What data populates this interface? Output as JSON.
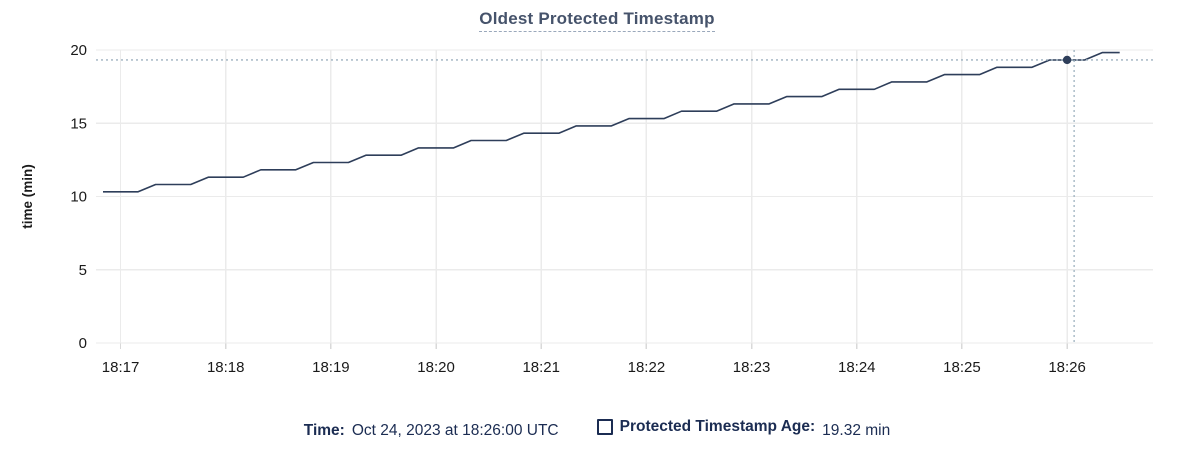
{
  "title": "Oldest Protected Timestamp",
  "chart_data": {
    "type": "line",
    "title": "Oldest Protected Timestamp",
    "xlabel": "",
    "ylabel": "time (min)",
    "ylim": [
      0,
      20
    ],
    "yticks": [
      0,
      5,
      10,
      15,
      20
    ],
    "grid": true,
    "legend_position": "bottom",
    "x_axis": {
      "labels": [
        "18:17",
        "18:18",
        "18:19",
        "18:20",
        "18:21",
        "18:22",
        "18:23",
        "18:24",
        "18:25",
        "18:26"
      ],
      "label_times_s": [
        10,
        70,
        130,
        190,
        250,
        310,
        370,
        430,
        490,
        550
      ],
      "range_s": [
        -4,
        599
      ]
    },
    "series": [
      {
        "name": "Protected Timestamp Age",
        "points": [
          [
            0,
            10.32
          ],
          [
            20,
            10.32
          ],
          [
            30,
            10.82
          ],
          [
            50,
            10.82
          ],
          [
            60,
            11.32
          ],
          [
            80,
            11.32
          ],
          [
            90,
            11.82
          ],
          [
            110,
            11.82
          ],
          [
            120,
            12.32
          ],
          [
            140,
            12.32
          ],
          [
            150,
            12.82
          ],
          [
            170,
            12.82
          ],
          [
            180,
            13.32
          ],
          [
            200,
            13.32
          ],
          [
            210,
            13.82
          ],
          [
            230,
            13.82
          ],
          [
            240,
            14.32
          ],
          [
            260,
            14.32
          ],
          [
            270,
            14.82
          ],
          [
            290,
            14.82
          ],
          [
            300,
            15.32
          ],
          [
            320,
            15.32
          ],
          [
            330,
            15.82
          ],
          [
            350,
            15.82
          ],
          [
            360,
            16.32
          ],
          [
            380,
            16.32
          ],
          [
            390,
            16.82
          ],
          [
            410,
            16.82
          ],
          [
            420,
            17.32
          ],
          [
            440,
            17.32
          ],
          [
            450,
            17.82
          ],
          [
            470,
            17.82
          ],
          [
            480,
            18.32
          ],
          [
            500,
            18.32
          ],
          [
            510,
            18.82
          ],
          [
            530,
            18.82
          ],
          [
            540,
            19.32
          ],
          [
            560,
            19.32
          ],
          [
            570,
            19.82
          ],
          [
            580,
            19.82
          ]
        ]
      }
    ],
    "crosshair": {
      "hover_time_s": 554,
      "point_time_s": 550,
      "value": 19.32
    },
    "colors": {
      "line": "#2e3e5a",
      "marker": "#2e3e5a",
      "crosshair": "#9db1bf",
      "grid": "#ebebeb",
      "tick_stub": "#d9d9d9",
      "axis_text": "#1a1a1a",
      "title": "#46536b",
      "footer_text": "#1b2c52"
    }
  },
  "footer": {
    "time_label": "Time:",
    "time_value": "Oct 24, 2023 at 18:26:00 UTC",
    "age_label": "Protected Timestamp Age:",
    "age_value": "19.32 min"
  }
}
